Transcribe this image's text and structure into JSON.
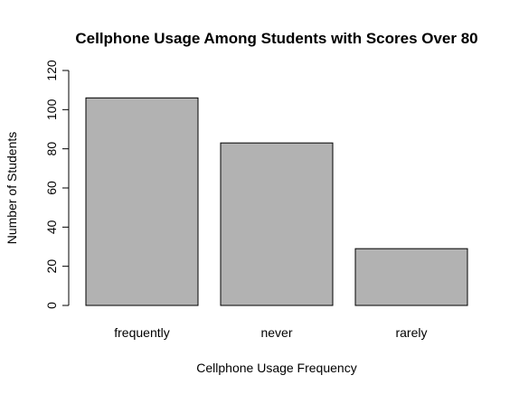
{
  "chart_data": {
    "type": "bar",
    "title": "Cellphone Usage Among Students with Scores Over 80",
    "xlabel": "Cellphone Usage Frequency",
    "ylabel": "Number of Students",
    "categories": [
      "frequently",
      "never",
      "rarely"
    ],
    "values": [
      106,
      83,
      29
    ],
    "ylim": [
      0,
      120
    ],
    "yticks": [
      0,
      20,
      40,
      60,
      80,
      100,
      120
    ],
    "grid": false,
    "bar_color": "#b2b2b2",
    "border_color": "#000000"
  }
}
